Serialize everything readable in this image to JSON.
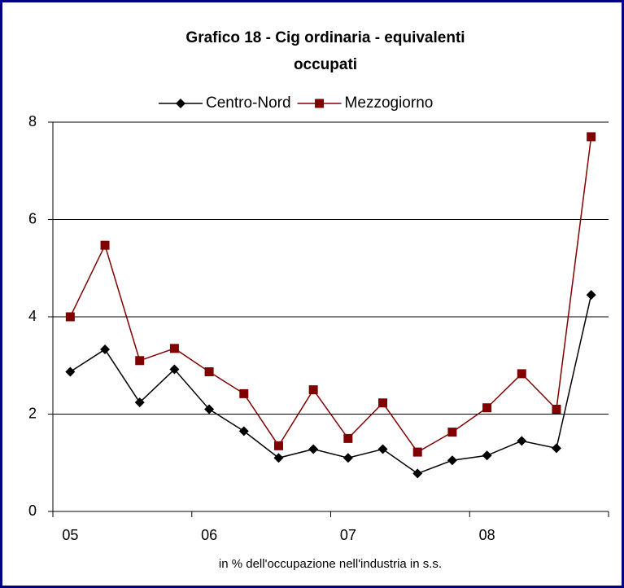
{
  "chart_data": {
    "type": "line",
    "title": "Grafico 18 - Cig ordinaria - equivalenti occupati",
    "title_lines": [
      "Grafico 18 - Cig ordinaria - equivalenti",
      "occupati"
    ],
    "x_label": "in % dell'occupazione nell'industria in s.s.",
    "categories": [
      "05",
      null,
      null,
      null,
      "06",
      null,
      null,
      null,
      "07",
      null,
      null,
      null,
      "08",
      null,
      null,
      null
    ],
    "series": [
      {
        "name": "Centro-Nord",
        "color": "#000000",
        "marker": "diamond",
        "values": [
          2.87,
          3.33,
          2.24,
          2.92,
          2.1,
          1.65,
          1.1,
          1.28,
          1.1,
          1.28,
          0.78,
          1.05,
          1.15,
          1.45,
          1.3,
          4.45
        ]
      },
      {
        "name": "Mezzogiorno",
        "color": "#800000",
        "marker": "square",
        "values": [
          4.0,
          5.47,
          3.1,
          3.35,
          2.87,
          2.42,
          1.35,
          2.5,
          1.5,
          2.23,
          1.22,
          1.63,
          2.13,
          2.83,
          2.1,
          7.7
        ]
      }
    ],
    "ylim": [
      0,
      8
    ],
    "yticks": [
      0,
      2,
      4,
      6,
      8
    ],
    "grid": true,
    "legend": "top"
  }
}
